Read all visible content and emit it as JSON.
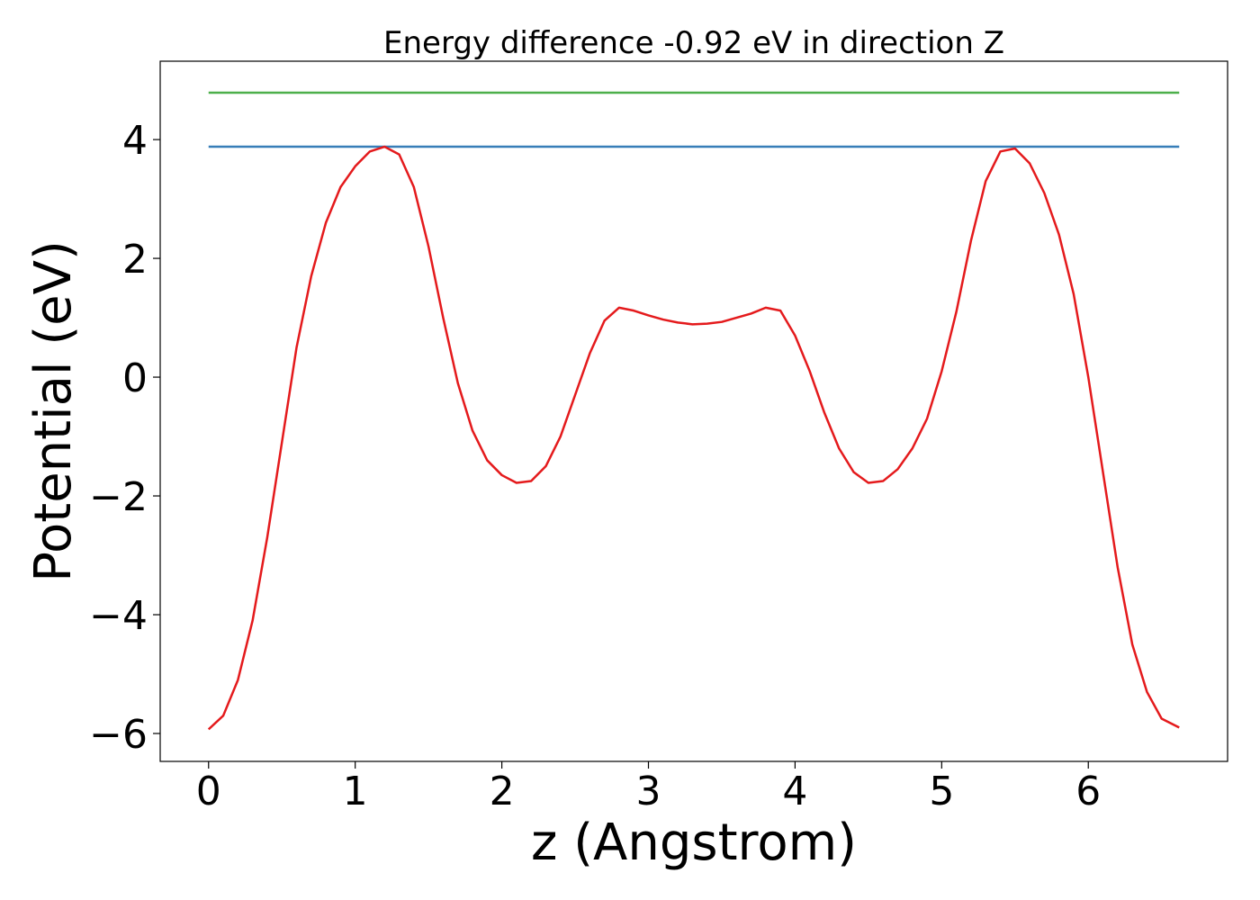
{
  "chart_data": {
    "type": "line",
    "title": "Energy difference -0.92 eV in direction Z",
    "xlabel": "z (Angstrom)",
    "ylabel": "Potential (eV)",
    "xlim": [
      -0.33,
      6.95
    ],
    "ylim": [
      -6.47,
      5.32
    ],
    "xticks": [
      0,
      1,
      2,
      3,
      4,
      5,
      6
    ],
    "yticks": [
      {
        "value": -6,
        "label": "−6"
      },
      {
        "value": -4,
        "label": "−4"
      },
      {
        "value": -2,
        "label": "−2"
      },
      0,
      2,
      4
    ],
    "grid": false,
    "series": [
      {
        "color": "#4daf4a",
        "x": [
          0,
          6.62
        ],
        "values": [
          4.79,
          4.79
        ]
      },
      {
        "color": "#377eb8",
        "x": [
          0,
          6.62
        ],
        "values": [
          3.88,
          3.88
        ]
      },
      {
        "color": "#e41a1c",
        "x": [
          0,
          0.1,
          0.2,
          0.3,
          0.4,
          0.5,
          0.6,
          0.7,
          0.8,
          0.9,
          1.0,
          1.1,
          1.2,
          1.3,
          1.4,
          1.5,
          1.6,
          1.7,
          1.8,
          1.9,
          2.0,
          2.1,
          2.2,
          2.3,
          2.4,
          2.5,
          2.6,
          2.7,
          2.8,
          2.9,
          3.0,
          3.1,
          3.2,
          3.3,
          3.4,
          3.5,
          3.6,
          3.7,
          3.8,
          3.9,
          4.0,
          4.1,
          4.2,
          4.3,
          4.4,
          4.5,
          4.6,
          4.7,
          4.8,
          4.9,
          5.0,
          5.1,
          5.2,
          5.3,
          5.4,
          5.5,
          5.6,
          5.7,
          5.8,
          5.9,
          6.0,
          6.1,
          6.2,
          6.3,
          6.4,
          6.5,
          6.62
        ],
        "values": [
          -5.93,
          -5.7,
          -5.1,
          -4.1,
          -2.7,
          -1.1,
          0.5,
          1.7,
          2.6,
          3.2,
          3.55,
          3.8,
          3.88,
          3.75,
          3.2,
          2.2,
          1.0,
          -0.1,
          -0.9,
          -1.4,
          -1.65,
          -1.78,
          -1.75,
          -1.5,
          -1.0,
          -0.3,
          0.4,
          0.95,
          1.17,
          1.12,
          1.04,
          0.97,
          0.92,
          0.89,
          0.9,
          0.93,
          1.0,
          1.07,
          1.17,
          1.12,
          0.7,
          0.1,
          -0.6,
          -1.2,
          -1.6,
          -1.78,
          -1.75,
          -1.55,
          -1.2,
          -0.7,
          0.1,
          1.1,
          2.3,
          3.3,
          3.8,
          3.85,
          3.6,
          3.1,
          2.4,
          1.4,
          0.0,
          -1.6,
          -3.2,
          -4.5,
          -5.3,
          -5.75,
          -5.9
        ]
      }
    ]
  }
}
